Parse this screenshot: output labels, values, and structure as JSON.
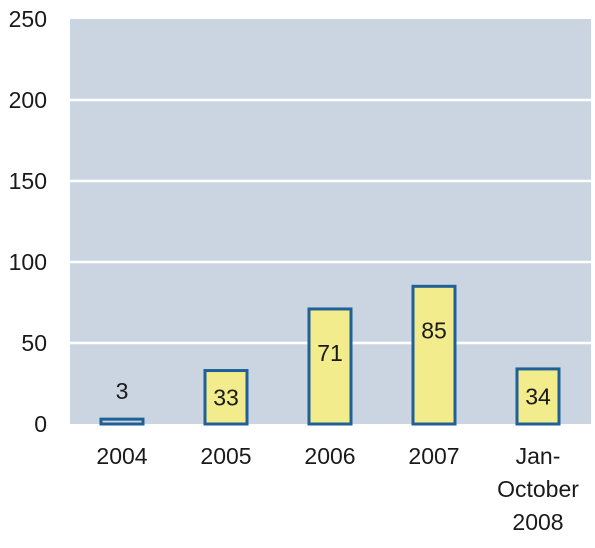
{
  "chart_data": {
    "type": "bar",
    "categories": [
      "2004",
      "2005",
      "2006",
      "2007",
      "Jan-October 2008"
    ],
    "category_label_lines": [
      [
        "2004"
      ],
      [
        "2005"
      ],
      [
        "2006"
      ],
      [
        "2007"
      ],
      [
        "Jan-",
        "October",
        "2008"
      ]
    ],
    "values": [
      3,
      33,
      71,
      85,
      34
    ],
    "data_labels": [
      "3",
      "33",
      "71",
      "85",
      "34"
    ],
    "title": "",
    "xlabel": "",
    "ylabel": "",
    "ylim": [
      0,
      250
    ],
    "yticks": [
      0,
      50,
      100,
      150,
      200,
      250
    ],
    "ytick_labels": [
      "0",
      "50",
      "100",
      "150",
      "200",
      "250"
    ],
    "grid": "horizontal",
    "colors": {
      "plot_background": "#cbd5e2",
      "bar_fill": "#f2ec8c",
      "bar_stroke": "#1f6196",
      "grid_line": "#ffffff",
      "text": "#1a1a1a"
    }
  }
}
